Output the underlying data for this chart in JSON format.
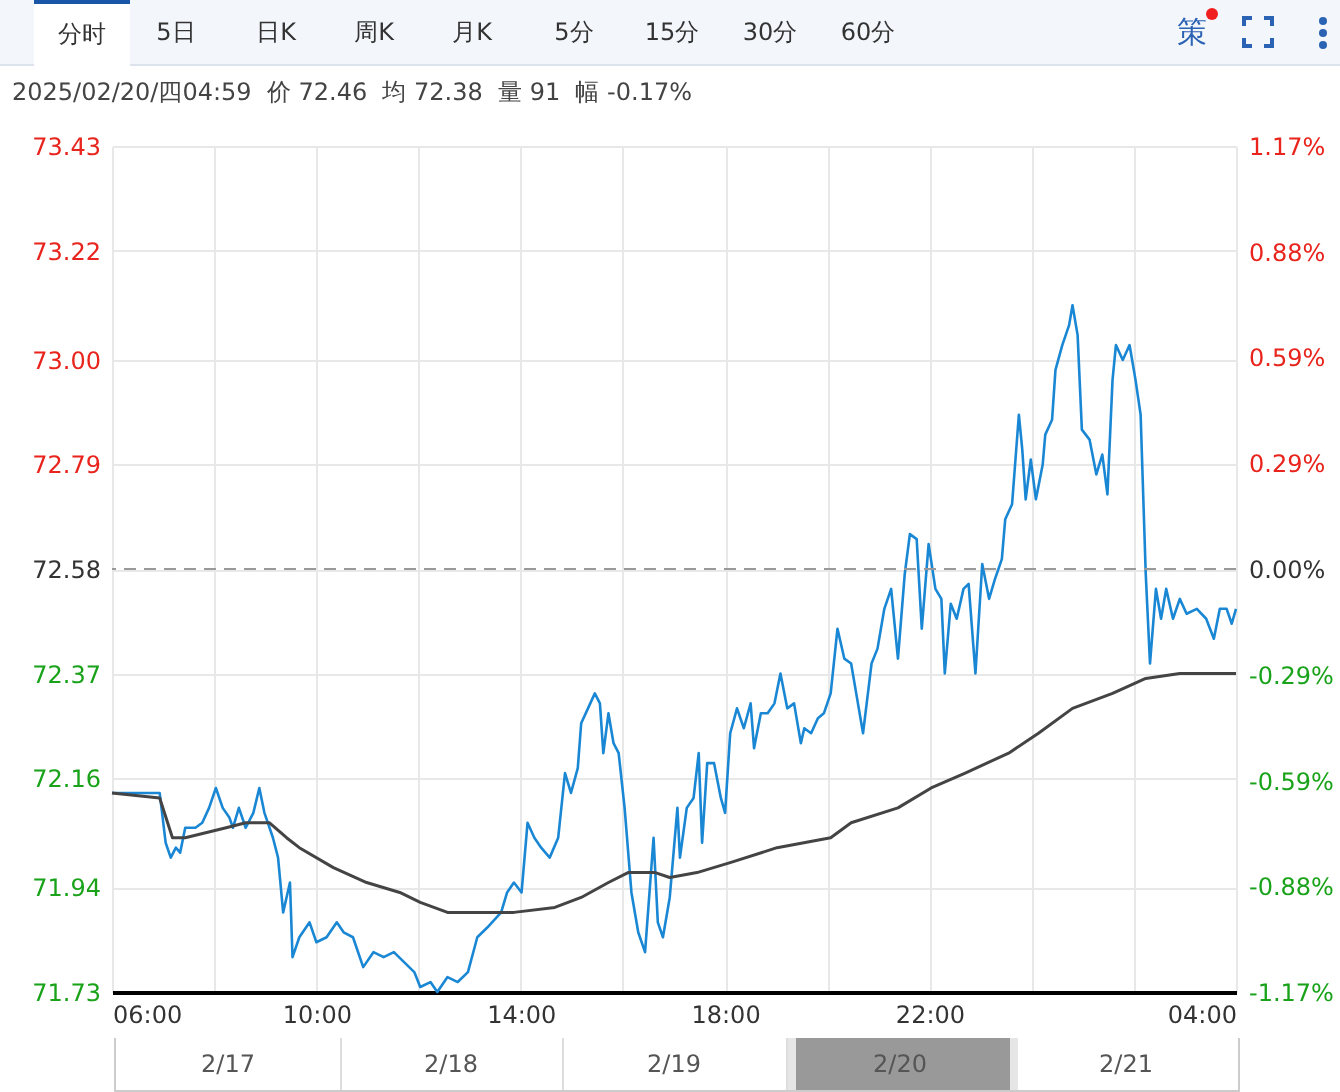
{
  "chart_data": {
    "type": "line",
    "subtitle": "2025/02/20/四04:59  价 72.46  均 72.38  量 91  幅 -0.17%",
    "annotations": [
      "分时",
      "5日",
      "日K",
      "周K",
      "月K",
      "5分",
      "15分",
      "30分",
      "60分",
      "策",
      "2/17",
      "2/18",
      "2/19",
      "2/20",
      "2/21"
    ],
    "series": [
      {
        "color": "#1a87d4",
        "x": [
          "2025-02-19T06:00",
          "2025-02-19T06:56",
          "2025-02-19T07:03",
          "2025-02-19T07:09",
          "2025-02-19T07:15",
          "2025-02-19T07:20",
          "2025-02-19T07:26",
          "2025-02-19T07:38",
          "2025-02-19T07:46",
          "2025-02-19T07:54",
          "2025-02-19T08:02",
          "2025-02-19T08:10",
          "2025-02-19T08:18",
          "2025-02-19T08:22",
          "2025-02-19T08:29",
          "2025-02-19T08:37",
          "2025-02-19T08:46",
          "2025-02-19T08:53",
          "2025-02-19T08:59",
          "2025-02-19T09:09",
          "2025-02-19T09:15",
          "2025-02-19T09:21",
          "2025-02-19T09:29",
          "2025-02-19T09:32",
          "2025-02-19T09:40",
          "2025-02-19T09:52",
          "2025-02-19T10:00",
          "2025-02-19T10:12",
          "2025-02-19T10:24",
          "2025-02-19T10:32",
          "2025-02-19T10:43",
          "2025-02-19T10:55",
          "2025-02-19T11:07",
          "2025-02-19T11:19",
          "2025-02-19T11:31",
          "2025-02-19T11:43",
          "2025-02-19T11:55",
          "2025-02-19T12:02",
          "2025-02-19T12:14",
          "2025-02-19T12:22",
          "2025-02-19T12:34",
          "2025-02-19T12:46",
          "2025-02-19T12:58",
          "2025-02-19T13:09",
          "2025-02-19T13:21",
          "2025-02-19T13:37",
          "2025-02-19T13:44",
          "2025-02-19T13:52",
          "2025-02-19T14:01",
          "2025-02-19T14:08",
          "2025-02-19T14:16",
          "2025-02-19T14:24",
          "2025-02-19T14:34",
          "2025-02-19T14:44",
          "2025-02-19T14:52",
          "2025-02-19T14:59",
          "2025-02-19T15:07",
          "2025-02-19T15:11",
          "2025-02-19T15:19",
          "2025-02-19T15:27",
          "2025-02-19T15:33",
          "2025-02-19T15:37",
          "2025-02-19T15:43",
          "2025-02-19T15:49",
          "2025-02-19T15:55",
          "2025-02-19T16:02",
          "2025-02-19T16:10",
          "2025-02-19T16:18",
          "2025-02-19T16:26",
          "2025-02-19T16:36",
          "2025-02-19T16:41",
          "2025-02-19T16:47",
          "2025-02-19T16:55",
          "2025-02-19T17:04",
          "2025-02-19T17:07",
          "2025-02-19T17:15",
          "2025-02-19T17:23",
          "2025-02-19T17:29",
          "2025-02-19T17:33",
          "2025-02-19T17:39",
          "2025-02-19T17:47",
          "2025-02-19T17:55",
          "2025-02-19T18:00",
          "2025-02-19T18:06",
          "2025-02-19T18:14",
          "2025-02-19T18:22",
          "2025-02-19T18:30",
          "2025-02-19T18:34",
          "2025-02-19T18:42",
          "2025-02-19T18:50",
          "2025-02-19T18:58",
          "2025-02-19T19:05",
          "2025-02-19T19:13",
          "2025-02-19T19:21",
          "2025-02-19T19:29",
          "2025-02-19T19:33",
          "2025-02-19T19:41",
          "2025-02-19T19:49",
          "2025-02-19T19:56",
          "2025-02-19T20:04",
          "2025-02-19T20:12",
          "2025-02-19T20:20",
          "2025-02-19T20:28",
          "2025-02-19T20:36",
          "2025-02-19T20:42",
          "2025-02-19T20:52",
          "2025-02-19T20:59",
          "2025-02-19T21:07",
          "2025-02-19T21:15",
          "2025-02-19T21:23",
          "2025-02-19T21:31",
          "2025-02-19T21:37",
          "2025-02-19T21:45",
          "2025-02-19T21:51",
          "2025-02-19T21:59",
          "2025-02-19T22:07",
          "2025-02-19T22:14",
          "2025-02-19T22:18",
          "2025-02-19T22:25",
          "2025-02-19T22:32",
          "2025-02-19T22:40",
          "2025-02-19T22:46",
          "2025-02-19T22:54",
          "2025-02-19T23:02",
          "2025-02-19T23:10",
          "2025-02-19T23:17",
          "2025-02-19T23:25",
          "2025-02-19T23:29",
          "2025-02-19T23:37",
          "2025-02-19T23:45",
          "2025-02-19T23:49",
          "2025-02-19T23:53",
          "2025-02-19T23:59",
          "2025-02-20T00:05",
          "2025-02-20T00:13",
          "2025-02-20T00:16",
          "2025-02-20T00:24",
          "2025-02-20T00:28",
          "2025-02-20T00:36",
          "2025-02-20T00:44",
          "2025-02-20T00:48",
          "2025-02-20T00:54",
          "2025-02-20T00:59",
          "2025-02-20T01:08",
          "2025-02-20T01:16",
          "2025-02-20T01:23",
          "2025-02-20T01:29",
          "2025-02-20T01:35",
          "2025-02-20T01:39",
          "2025-02-20T01:47",
          "2025-02-20T01:55",
          "2025-02-20T02:02",
          "2025-02-20T02:08",
          "2025-02-20T02:14",
          "2025-02-20T02:19",
          "2025-02-20T02:26",
          "2025-02-20T02:32",
          "2025-02-20T02:38",
          "2025-02-20T02:46",
          "2025-02-20T02:54",
          "2025-02-20T03:02",
          "2025-02-20T03:14",
          "2025-02-20T03:25",
          "2025-02-20T03:34",
          "2025-02-20T03:41",
          "2025-02-20T03:49",
          "2025-02-20T03:55",
          "2025-02-20T04:00"
        ],
        "values": [
          72.13,
          72.13,
          72.03,
          72.0,
          72.02,
          72.01,
          72.06,
          72.06,
          72.07,
          72.1,
          72.14,
          72.1,
          72.08,
          72.06,
          72.1,
          72.06,
          72.09,
          72.14,
          72.09,
          72.04,
          72.0,
          71.89,
          71.95,
          71.8,
          71.84,
          71.87,
          71.83,
          71.84,
          71.87,
          71.85,
          71.84,
          71.78,
          71.81,
          71.8,
          71.81,
          71.79,
          71.77,
          71.74,
          71.75,
          71.73,
          71.76,
          71.75,
          71.77,
          71.84,
          71.86,
          71.89,
          71.93,
          71.95,
          71.93,
          72.07,
          72.04,
          72.02,
          72.0,
          72.04,
          72.17,
          72.13,
          72.18,
          72.27,
          72.3,
          72.33,
          72.31,
          72.21,
          72.29,
          72.23,
          72.21,
          72.1,
          71.93,
          71.85,
          71.81,
          72.04,
          71.87,
          71.84,
          71.92,
          72.1,
          72.0,
          72.1,
          72.12,
          72.21,
          72.03,
          72.19,
          72.19,
          72.12,
          72.09,
          72.25,
          72.3,
          72.26,
          72.31,
          72.22,
          72.29,
          72.29,
          72.31,
          72.37,
          72.3,
          72.31,
          72.23,
          72.26,
          72.25,
          72.28,
          72.29,
          72.33,
          72.46,
          72.4,
          72.39,
          72.31,
          72.25,
          72.39,
          72.42,
          72.5,
          72.54,
          72.4,
          72.57,
          72.65,
          72.64,
          72.46,
          72.63,
          72.54,
          72.52,
          72.37,
          72.51,
          72.48,
          72.54,
          72.55,
          72.37,
          72.59,
          72.52,
          72.56,
          72.6,
          72.68,
          72.71,
          72.89,
          72.82,
          72.72,
          72.8,
          72.72,
          72.79,
          72.85,
          72.88,
          72.98,
          73.03,
          73.07,
          73.11,
          73.05,
          72.86,
          72.84,
          72.77,
          72.81,
          72.73,
          72.96,
          73.03,
          73.0,
          73.03,
          72.96,
          72.89,
          72.57,
          72.39,
          72.54,
          72.48,
          72.54,
          72.48,
          72.52,
          72.49,
          72.5,
          72.48,
          72.44,
          72.5,
          72.5,
          72.47,
          72.5
        ]
      },
      {
        "color": "#444444",
        "x": [
          "2025-02-19T06:00",
          "2025-02-19T06:56",
          "2025-02-19T07:11",
          "2025-02-19T07:26",
          "2025-02-19T07:50",
          "2025-02-19T08:14",
          "2025-02-19T08:37",
          "2025-02-19T09:05",
          "2025-02-19T09:25",
          "2025-02-19T09:40",
          "2025-02-19T10:20",
          "2025-02-19T10:59",
          "2025-02-19T11:38",
          "2025-02-19T12:02",
          "2025-02-19T12:34",
          "2025-02-19T13:05",
          "2025-02-19T13:52",
          "2025-02-19T14:40",
          "2025-02-19T15:11",
          "2025-02-19T15:43",
          "2025-02-19T16:06",
          "2025-02-19T16:38",
          "2025-02-19T16:55",
          "2025-02-19T17:27",
          "2025-02-19T18:06",
          "2025-02-19T19:01",
          "2025-02-19T20:04",
          "2025-02-19T20:28",
          "2025-02-19T21:23",
          "2025-02-19T22:02",
          "2025-02-19T22:42",
          "2025-02-19T23:33",
          "2025-02-20T00:08",
          "2025-02-20T00:48",
          "2025-02-20T01:35",
          "2025-02-20T02:14",
          "2025-02-20T02:54",
          "2025-02-20T04:00"
        ],
        "values": [
          72.13,
          72.12,
          72.04,
          72.04,
          72.05,
          72.06,
          72.07,
          72.07,
          72.04,
          72.02,
          71.98,
          71.95,
          71.93,
          71.91,
          71.89,
          71.89,
          71.89,
          71.9,
          71.92,
          71.95,
          71.97,
          71.97,
          71.96,
          71.97,
          71.99,
          72.02,
          72.04,
          72.07,
          72.1,
          72.14,
          72.17,
          72.21,
          72.25,
          72.3,
          72.33,
          72.36,
          72.37,
          72.37
        ]
      }
    ],
    "xlim": [
      "2025-02-19T06:00",
      "2025-02-20T04:00"
    ],
    "xticks": [
      {
        "value": "2025-02-19T06:00",
        "label": "06:00"
      },
      {
        "value": "2025-02-19T08:00",
        "label": null
      },
      {
        "value": "2025-02-19T10:00",
        "label": "10:00"
      },
      {
        "value": "2025-02-19T12:00",
        "label": null
      },
      {
        "value": "2025-02-19T14:00",
        "label": "14:00"
      },
      {
        "value": "2025-02-19T16:00",
        "label": null
      },
      {
        "value": "2025-02-19T18:00",
        "label": "18:00"
      },
      {
        "value": "2025-02-19T20:00",
        "label": null
      },
      {
        "value": "2025-02-19T22:00",
        "label": "22:00"
      },
      {
        "value": "2025-02-20T00:00",
        "label": null
      },
      {
        "value": "2025-02-20T02:00",
        "label": null
      },
      {
        "value": "2025-02-20T04:00",
        "label": "04:00"
      }
    ],
    "ylim": [
      71.73,
      73.43
    ],
    "yticks": [
      {
        "value": 73.43,
        "label": "73.43"
      },
      {
        "value": 73.22,
        "label": "73.22"
      },
      {
        "value": 73.0,
        "label": "73.00"
      },
      {
        "value": 72.79,
        "label": "72.79"
      },
      {
        "value": 72.58,
        "label": "72.58"
      },
      {
        "value": 72.37,
        "label": "72.37"
      },
      {
        "value": 72.16,
        "label": "72.16"
      },
      {
        "value": 71.94,
        "label": "71.94"
      },
      {
        "value": 71.73,
        "label": "71.73"
      }
    ],
    "y2lim": [
      -1.1713,
      1.1713
    ],
    "y2ticks": [
      {
        "value": 1.1713,
        "label": "1.17%"
      },
      {
        "value": 0.8785,
        "label": "0.88%"
      },
      {
        "value": 0.5857,
        "label": "0.59%"
      },
      {
        "value": 0.2928,
        "label": "0.29%"
      },
      {
        "value": 0,
        "label": "0.00%"
      },
      {
        "value": -0.2928,
        "label": "-0.29%"
      },
      {
        "value": -0.5857,
        "label": "-0.59%"
      },
      {
        "value": -0.8785,
        "label": "-0.88%"
      },
      {
        "value": -1.1713,
        "label": "-1.17%"
      }
    ],
    "ref_lines": [
      {
        "axis": "y",
        "value": 72.58,
        "color": "#999999",
        "line_style": "dashed"
      }
    ],
    "grid": true,
    "marker": "none",
    "line_style": "solid"
  }
}
